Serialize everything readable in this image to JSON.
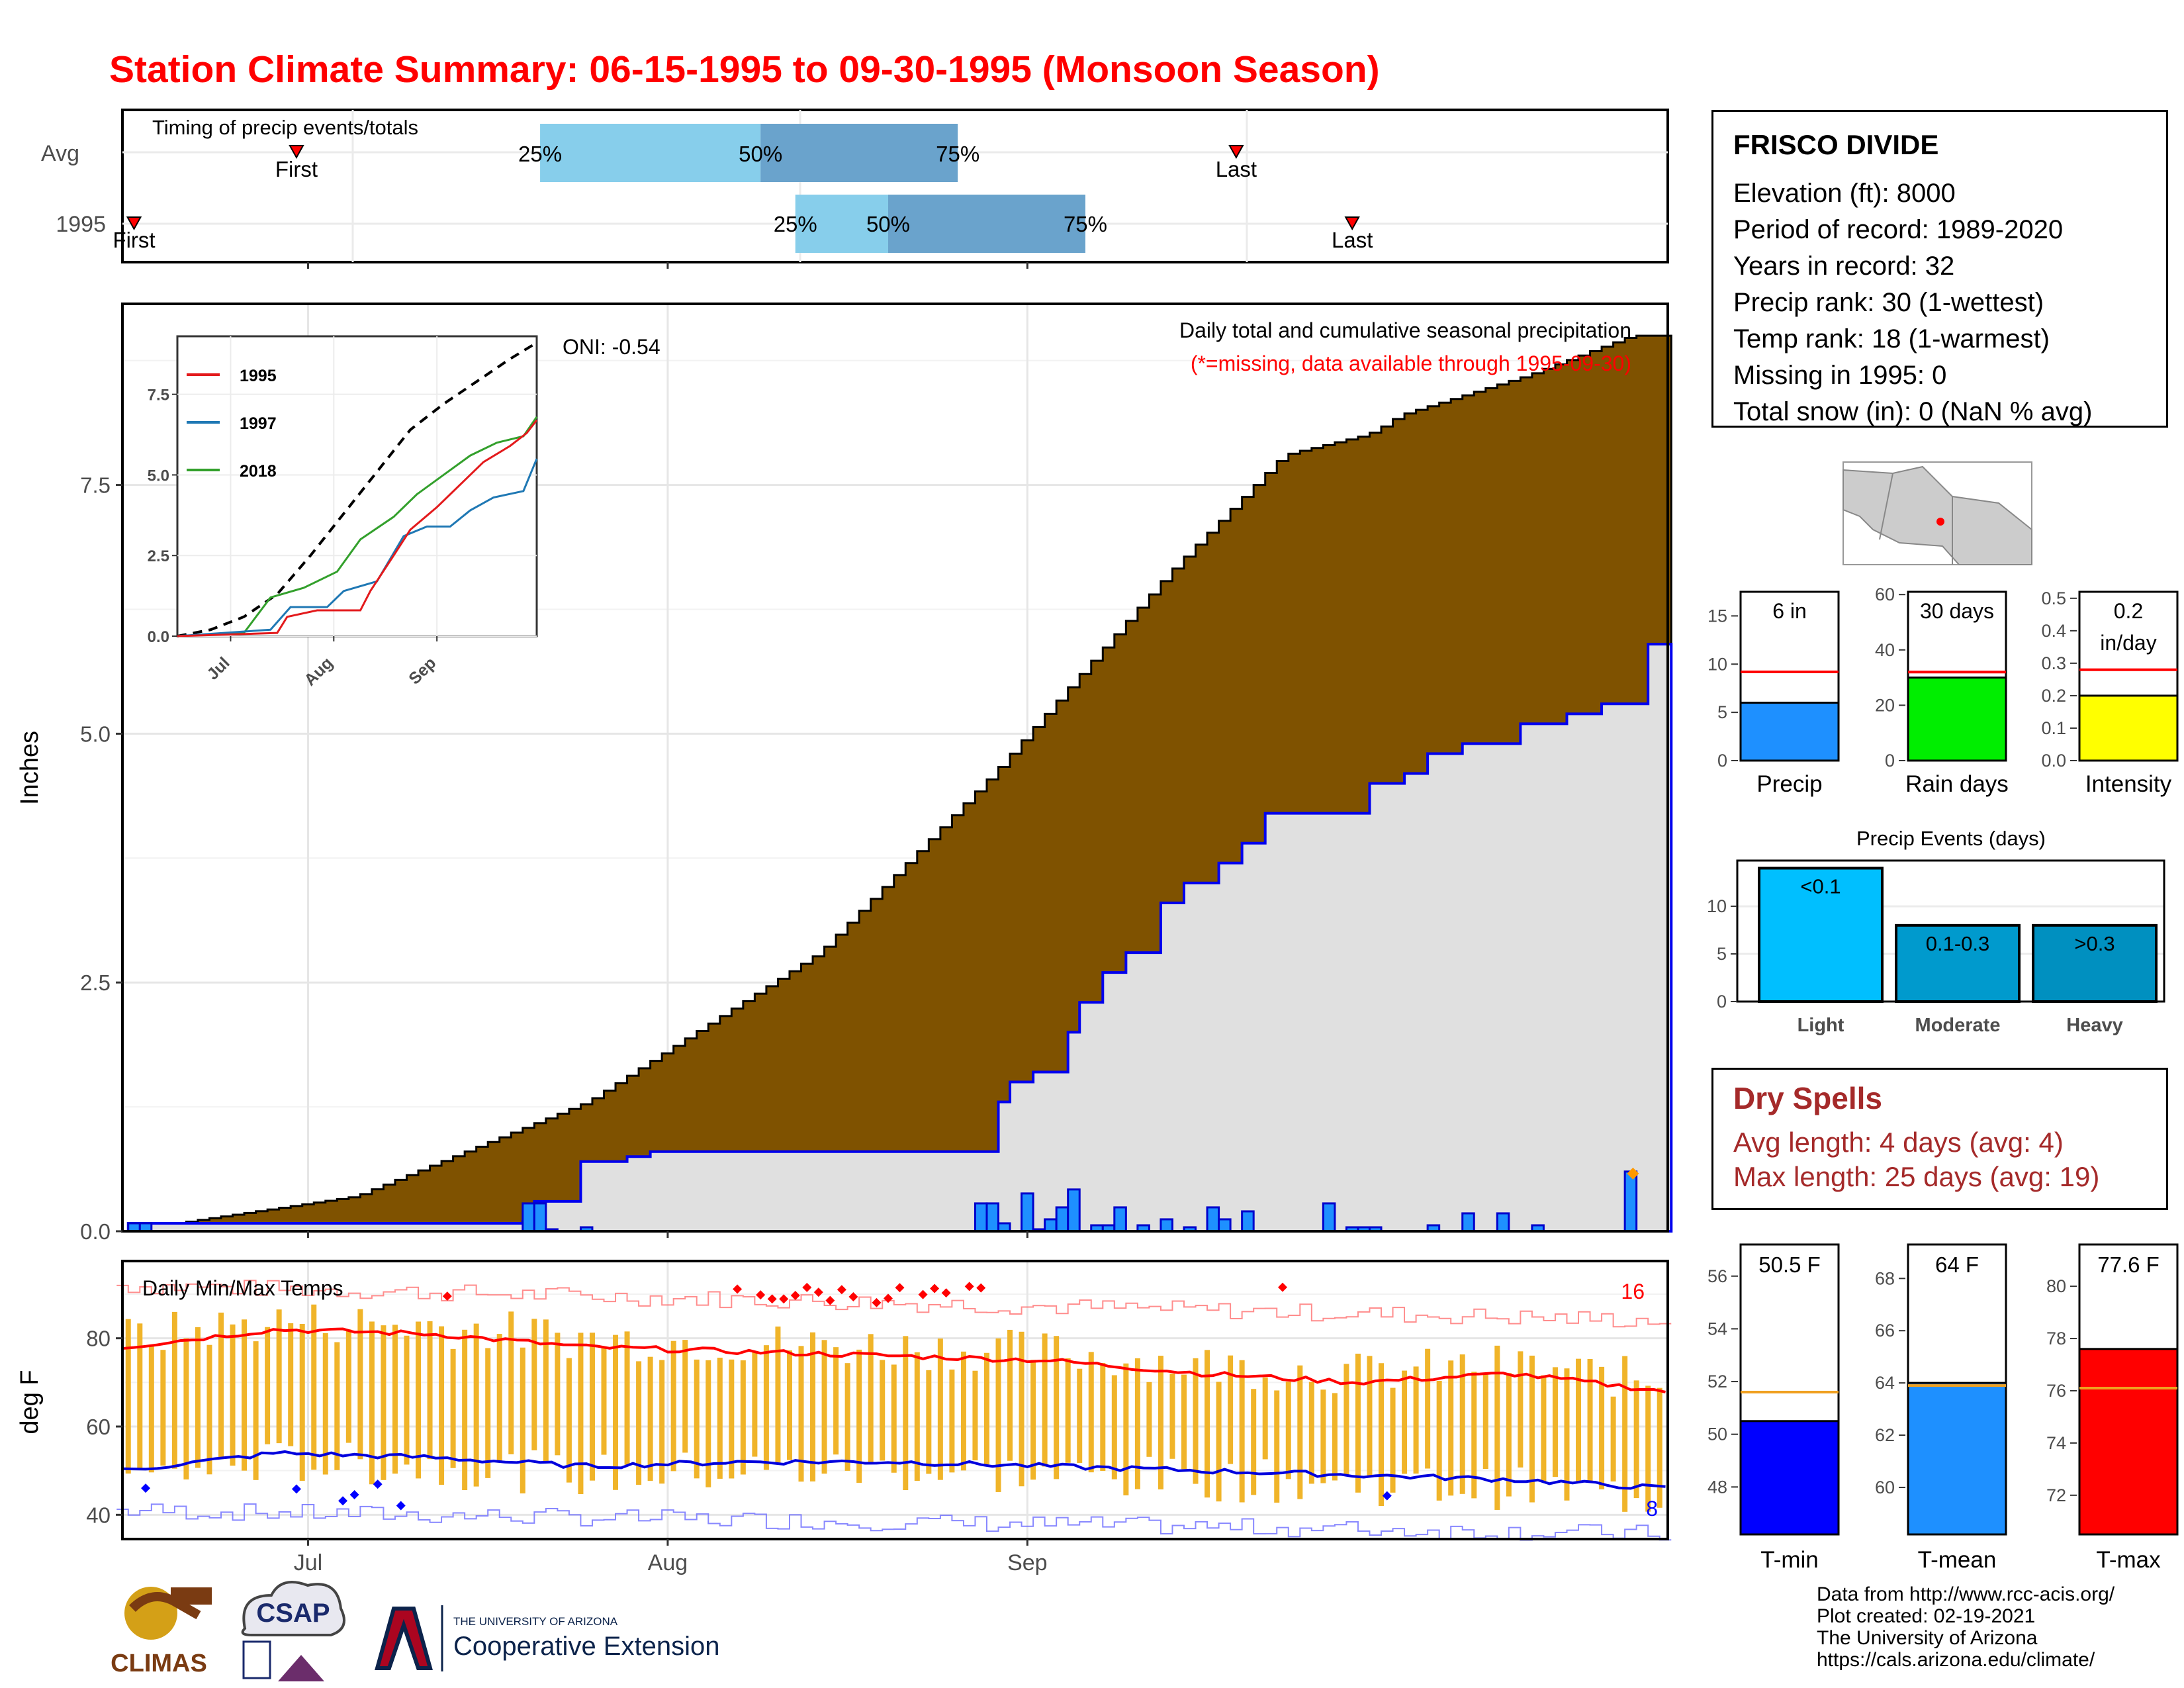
{
  "title": "Station Climate Summary: 06-15-1995 to 09-30-1995 (Monsoon Season)",
  "timing": {
    "label": "Timing of precip events/totals",
    "rows": [
      "Avg",
      "1995"
    ],
    "first_label": "First",
    "last_label": "Last",
    "q25": "25%",
    "q50": "50%",
    "q75": "75%",
    "avg": {
      "first": "2021-06-30",
      "q25": "2021-07-21",
      "q50": "2021-08-09",
      "q75": "2021-08-26",
      "last": "2021-09-19"
    },
    "y1995": {
      "first": "2021-06-16",
      "q25": "2021-08-12",
      "q50": "2021-08-20",
      "q75": "2021-09-06",
      "last": "2021-09-29"
    }
  },
  "precip": {
    "ylabel": "Inches",
    "title_line1": "Daily total and cumulative seasonal precipitation",
    "title_line2": "(*=missing, data available through 1995-09-30)",
    "oni": "ONI: -0.54",
    "y_ticks": [
      "0.0",
      "2.5",
      "5.0",
      "7.5"
    ]
  },
  "inset": {
    "legend": [
      "1995",
      "1997",
      "2018"
    ],
    "y_ticks": [
      "0.0",
      "2.5",
      "5.0",
      "7.5"
    ],
    "x_ticks": [
      "Jul",
      "Aug",
      "Sep"
    ]
  },
  "temps": {
    "label": "Daily Min/Max Temps",
    "ylabel": "deg F",
    "y_ticks": [
      "40",
      "60",
      "80"
    ],
    "count_hot": "16",
    "count_cold": "8"
  },
  "x_ticks": [
    "Jul",
    "Aug",
    "Sep"
  ],
  "station": {
    "name": "FRISCO DIVIDE",
    "lines": [
      "Elevation (ft): 8000",
      "Period of record: 1989-2020",
      "Years in record: 32",
      "Precip rank: 30 (1-wettest)",
      "Temp rank: 18 (1-warmest)",
      "Missing in 1995: 0",
      "Total snow (in): 0 (NaN % avg)"
    ]
  },
  "summary_bars": [
    {
      "label": "Precip",
      "text1": "6 in",
      "text2": "",
      "ticks": [
        "0",
        "5",
        "10",
        "15"
      ],
      "value": 6,
      "avg": 9.2,
      "ymax": 17.5,
      "color": "#1e90ff"
    },
    {
      "label": "Rain days",
      "text1": "30 days",
      "text2": "",
      "ticks": [
        "0",
        "20",
        "40",
        "60"
      ],
      "value": 30,
      "avg": 32,
      "ymax": 61,
      "color": "#00ee00"
    },
    {
      "label": "Intensity",
      "text1": "0.2",
      "text2": "in/day",
      "ticks": [
        "0.0",
        "0.1",
        "0.2",
        "0.3",
        "0.4",
        "0.5"
      ],
      "value": 0.2,
      "avg": 0.28,
      "ymax": 0.52,
      "color": "#ffff00"
    }
  ],
  "events": {
    "title": "Precip Events (days)",
    "ticks": [
      "0",
      "5",
      "10"
    ],
    "bars": [
      {
        "label": "Light",
        "text": "<0.1",
        "value": 14,
        "color": "#00bfff"
      },
      {
        "label": "Moderate",
        "text": "0.1-0.3",
        "value": 8,
        "color": "#009acd"
      },
      {
        "label": "Heavy",
        "text": ">0.3",
        "value": 8,
        "color": "#0090c0"
      }
    ]
  },
  "dry_spells": {
    "title": "Dry Spells",
    "line1": "Avg length: 4 days (avg: 4)",
    "line2": "Max length: 25 days (avg: 19)"
  },
  "temp_bars": [
    {
      "label": "T-min",
      "text": "50.5 F",
      "ticks": [
        "48",
        "50",
        "52",
        "54",
        "56"
      ],
      "value": 50.5,
      "avg": 51.6,
      "ymin": 46.2,
      "ymax": 57.2,
      "color": "#0000ff"
    },
    {
      "label": "T-mean",
      "text": "64 F",
      "ticks": [
        "60",
        "62",
        "64",
        "66",
        "68"
      ],
      "value": 64.0,
      "avg": 63.9,
      "ymin": 58.2,
      "ymax": 69.3,
      "color": "#1e90ff"
    },
    {
      "label": "T-max",
      "text": "77.6 F",
      "ticks": [
        "72",
        "74",
        "76",
        "78",
        "80"
      ],
      "value": 77.6,
      "avg": 76.1,
      "ymin": 70.5,
      "ymax": 81.6,
      "color": "#ff0000"
    }
  ],
  "credits": [
    "Data from http://www.rcc-acis.org/",
    "Plot created: 02-19-2021",
    "The University of Arizona",
    "https://cals.arizona.edu/climate/"
  ],
  "logos": {
    "climas": "CLIMAS",
    "csap": "CSAP",
    "ua_line1": "THE UNIVERSITY OF ARIZONA",
    "ua_line2": "Cooperative Extension"
  },
  "chart_data": [
    {
      "type": "area",
      "title": "Daily total and cumulative seasonal precipitation",
      "ylabel": "Inches",
      "x_range": [
        "1995-06-15",
        "1995-09-30"
      ],
      "ylim": [
        0,
        9
      ],
      "series": [
        {
          "name": "Avg",
          "values": [
            [
              0,
              0.0
            ],
            [
              20,
              0.35
            ],
            [
              40,
              1.3
            ],
            [
              60,
              2.8
            ],
            [
              75,
              4.6
            ],
            [
              90,
              6.6
            ],
            [
              100,
              7.8
            ],
            [
              107,
              8.0
            ],
            [
              108,
              8.05
            ],
            [
              110,
              8.2
            ],
            [
              121,
              8.6
            ],
            [
              130,
              9.0
            ]
          ]
        },
        {
          "name": "1995",
          "values": [
            [
              0,
              0.08
            ],
            [
              34,
              0.1
            ],
            [
              35,
              0.3
            ],
            [
              39,
              0.7
            ],
            [
              43,
              0.75
            ],
            [
              45,
              0.8
            ],
            [
              74,
              0.8
            ],
            [
              75,
              1.3
            ],
            [
              76,
              1.5
            ],
            [
              78,
              1.6
            ],
            [
              81,
              2.0
            ],
            [
              82,
              2.3
            ],
            [
              84,
              2.6
            ],
            [
              86,
              2.8
            ],
            [
              89,
              3.3
            ],
            [
              91,
              3.5
            ],
            [
              94,
              3.7
            ],
            [
              96,
              3.9
            ],
            [
              98,
              4.2
            ],
            [
              107,
              4.5
            ],
            [
              110,
              4.6
            ],
            [
              112,
              4.8
            ],
            [
              115,
              4.9
            ],
            [
              120,
              5.1
            ],
            [
              124,
              5.2
            ],
            [
              127,
              5.3
            ],
            [
              130,
              5.3
            ],
            [
              131,
              5.9
            ],
            [
              133,
              5.9
            ]
          ]
        }
      ],
      "daily_bars": [
        [
          1,
          0.08
        ],
        [
          2,
          0.08
        ],
        [
          35,
          0.28
        ],
        [
          36,
          0.28
        ],
        [
          37,
          0.02
        ],
        [
          40,
          0.04
        ],
        [
          74,
          0.28
        ],
        [
          75,
          0.28
        ],
        [
          76,
          0.08
        ],
        [
          78,
          0.38
        ],
        [
          79,
          0.02
        ],
        [
          80,
          0.12
        ],
        [
          81,
          0.24
        ],
        [
          82,
          0.42
        ],
        [
          84,
          0.06
        ],
        [
          85,
          0.06
        ],
        [
          86,
          0.24
        ],
        [
          88,
          0.06
        ],
        [
          90,
          0.12
        ],
        [
          92,
          0.04
        ],
        [
          94,
          0.24
        ],
        [
          95,
          0.12
        ],
        [
          97,
          0.2
        ],
        [
          104,
          0.28
        ],
        [
          106,
          0.04
        ],
        [
          107,
          0.04
        ],
        [
          108,
          0.04
        ],
        [
          113,
          0.06
        ],
        [
          116,
          0.18
        ],
        [
          119,
          0.18
        ],
        [
          122,
          0.06
        ],
        [
          130,
          0.6
        ]
      ]
    },
    {
      "type": "line",
      "title": "",
      "series": [
        {
          "name": "1995"
        },
        {
          "name": "1997"
        },
        {
          "name": "2018"
        }
      ],
      "ylim": [
        0,
        8.5
      ]
    },
    {
      "type": "bar",
      "title": "Daily Min/Max Temps",
      "ylabel": "deg F",
      "ylim": [
        35,
        97
      ],
      "avg_max": [
        78,
        82,
        81,
        78,
        77,
        76,
        75,
        72,
        70,
        72,
        68
      ],
      "avg_min": [
        50,
        54,
        53,
        51,
        52,
        52,
        51,
        50,
        49,
        48,
        46
      ]
    }
  ]
}
